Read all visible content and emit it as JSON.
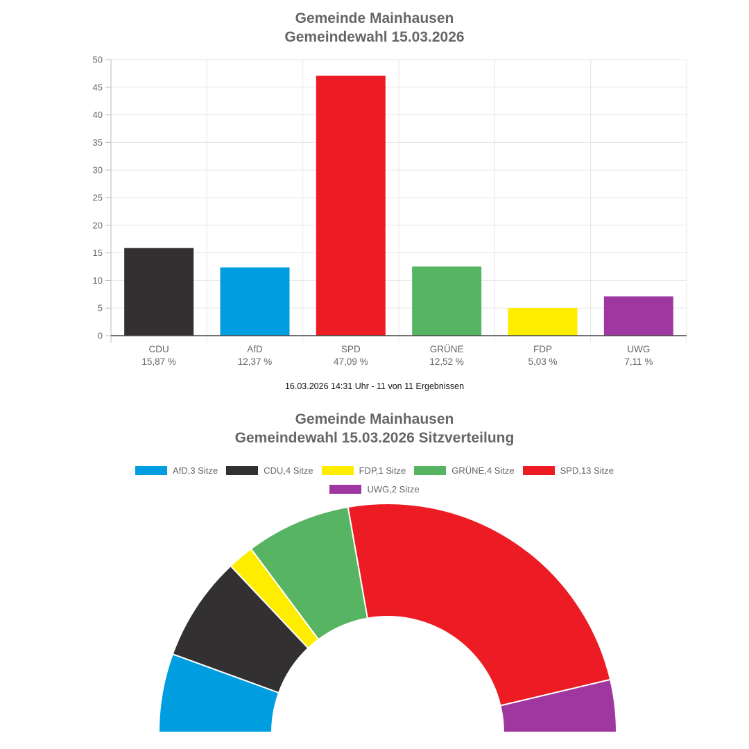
{
  "bar_chart": {
    "title_line1": "Gemeinde Mainhausen",
    "title_line2": "Gemeindewahl 15.03.2026",
    "footer": "16.03.2026 14:31 Uhr - 11 von 11 Ergebnissen"
  },
  "seat_chart": {
    "title_line1": "Gemeinde Mainhausen",
    "title_line2": "Gemeindewahl 15.03.2026 Sitzverteilung",
    "legend": [
      {
        "label": "AfD,3 Sitze",
        "color": "#009ee0"
      },
      {
        "label": "CDU,4 Sitze",
        "color": "#323031"
      },
      {
        "label": "FDP,1 Sitze",
        "color": "#ffed00"
      },
      {
        "label": "GRÜNE,4 Sitze",
        "color": "#57b462"
      },
      {
        "label": "SPD,13 Sitze",
        "color": "#ed1c24"
      },
      {
        "label": "UWG,2 Sitze",
        "color": "#9e37a0"
      }
    ]
  },
  "chart_data": [
    {
      "type": "bar",
      "title": "Gemeinde Mainhausen Gemeindewahl 15.03.2026",
      "categories": [
        "CDU",
        "AfD",
        "SPD",
        "GRÜNE",
        "FDP",
        "UWG"
      ],
      "category_sublabels": [
        "15,87 %",
        "12,37 %",
        "47,09 %",
        "12,52 %",
        "5,03 %",
        "7,11 %"
      ],
      "values": [
        15.87,
        12.37,
        47.09,
        12.52,
        5.03,
        7.11
      ],
      "colors": [
        "#323031",
        "#009ee0",
        "#ed1c24",
        "#57b462",
        "#ffed00",
        "#9e37a0"
      ],
      "xlabel": "",
      "ylabel": "",
      "ylim": [
        0,
        50
      ],
      "yticks": [
        0,
        5,
        10,
        15,
        20,
        25,
        30,
        35,
        40,
        45,
        50
      ],
      "grid": true,
      "legend": false
    },
    {
      "type": "pie",
      "variant": "semicircle-donut",
      "title": "Gemeinde Mainhausen Gemeindewahl 15.03.2026 Sitzverteilung",
      "categories": [
        "AfD",
        "CDU",
        "FDP",
        "GRÜNE",
        "SPD",
        "UWG"
      ],
      "values": [
        3,
        4,
        1,
        4,
        13,
        2
      ],
      "colors": [
        "#009ee0",
        "#323031",
        "#ffed00",
        "#57b462",
        "#ed1c24",
        "#9e37a0"
      ],
      "legend_position": "top"
    }
  ]
}
